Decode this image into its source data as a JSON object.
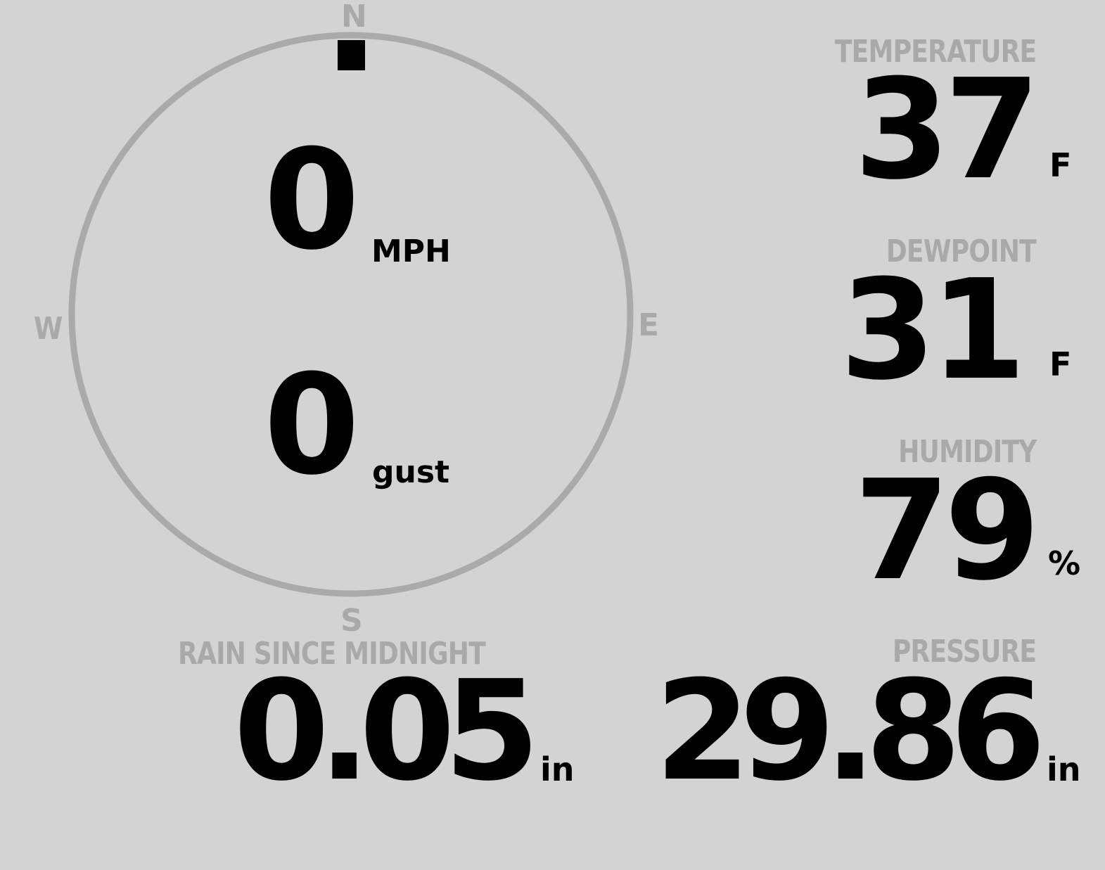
{
  "compass": {
    "north": "N",
    "east": "E",
    "south": "S",
    "west": "W",
    "wind_direction_deg": 0,
    "ring_color": "#aaaaaa",
    "marker_color": "#000000"
  },
  "wind": {
    "speed": "0",
    "speed_unit": "MPH",
    "gust": "0",
    "gust_unit": "gust"
  },
  "rain": {
    "label": "RAIN SINCE MIDNIGHT",
    "value": "0.05",
    "unit": "in"
  },
  "temperature": {
    "label": "TEMPERATURE",
    "value": "37",
    "unit": "F"
  },
  "dewpoint": {
    "label": "DEWPOINT",
    "value": "31",
    "unit": "F"
  },
  "humidity": {
    "label": "HUMIDITY",
    "value": "79",
    "unit": "%"
  },
  "pressure": {
    "label": "PRESSURE",
    "value": "29.86",
    "unit": "in"
  },
  "colors": {
    "background": "#d3d3d3",
    "label": "#a9a9a9",
    "value": "#000000"
  }
}
